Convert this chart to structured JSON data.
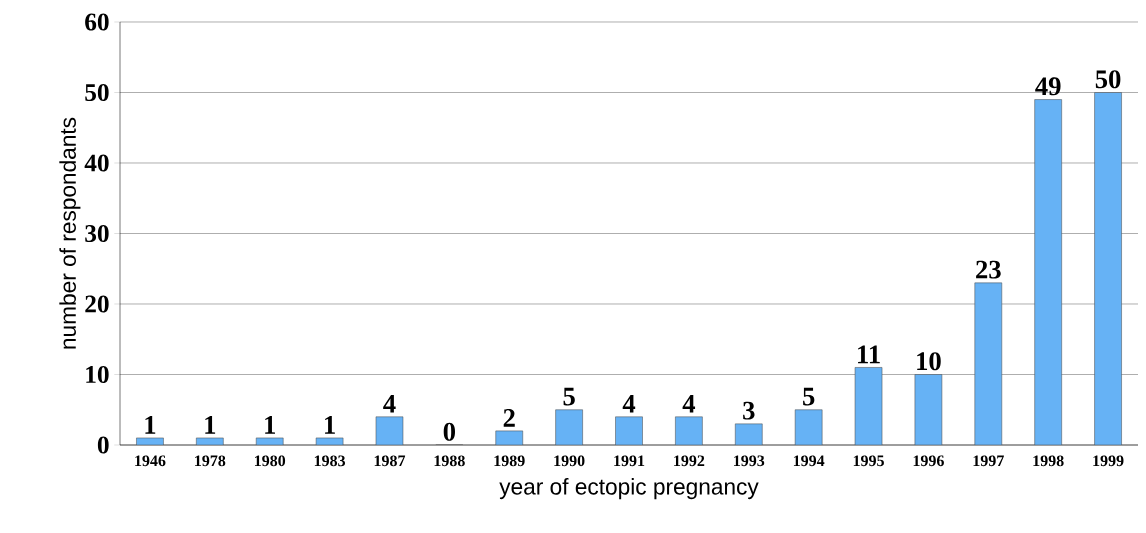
{
  "chart_data": {
    "type": "bar",
    "xlabel": "year of ectopic pregnancy",
    "ylabel": "number of respondants",
    "categories": [
      "1946",
      "1978",
      "1980",
      "1983",
      "1987",
      "1988",
      "1989",
      "1990",
      "1991",
      "1992",
      "1993",
      "1994",
      "1995",
      "1996",
      "1997",
      "1998",
      "1999"
    ],
    "values": [
      1,
      1,
      1,
      1,
      4,
      0,
      2,
      5,
      4,
      4,
      3,
      5,
      11,
      10,
      23,
      49,
      50
    ],
    "color": "#66b2f5",
    "ylim": [
      0,
      60
    ],
    "yticks": [
      0,
      10,
      20,
      30,
      40,
      50,
      60
    ],
    "grid": "y",
    "data_labels": true
  }
}
